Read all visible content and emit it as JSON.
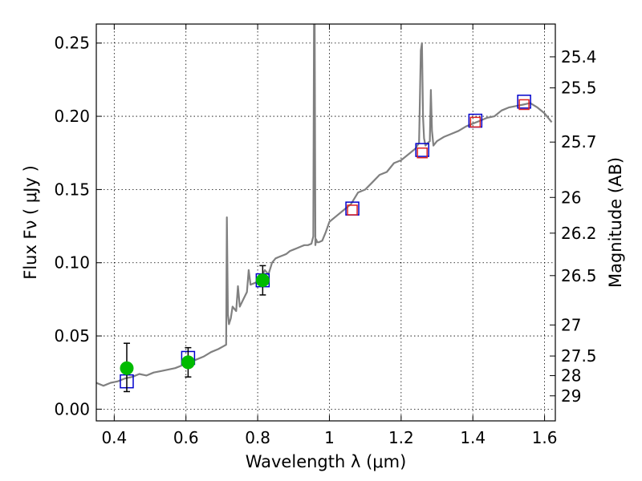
{
  "chart_data": {
    "type": "line",
    "title": "",
    "xlabel": "Wavelength  λ (μm)",
    "ylabel": "Flux  Fν  ( μJy )",
    "y2label": "Magnitude (AB)",
    "xlim": [
      0.35,
      1.63
    ],
    "ylim": [
      -0.008,
      0.263
    ],
    "grid": true,
    "colors": {
      "spectrum": "#808080",
      "observed": "#00bb00",
      "model_box": "#0000cc",
      "hst_box": "#dd2222",
      "errorbar": "#000000"
    },
    "x_ticks": [
      {
        "value": 0.4,
        "label": "0.4"
      },
      {
        "value": 0.6,
        "label": "0.6"
      },
      {
        "value": 0.8,
        "label": "0.8"
      },
      {
        "value": 1.0,
        "label": "1"
      },
      {
        "value": 1.2,
        "label": "1.2"
      },
      {
        "value": 1.4,
        "label": "1.4"
      },
      {
        "value": 1.6,
        "label": "1.6"
      }
    ],
    "y_ticks": [
      {
        "value": 0.0,
        "label": "0.00"
      },
      {
        "value": 0.05,
        "label": "0.05"
      },
      {
        "value": 0.1,
        "label": "0.10"
      },
      {
        "value": 0.15,
        "label": "0.15"
      },
      {
        "value": 0.2,
        "label": "0.20"
      },
      {
        "value": 0.25,
        "label": "0.25"
      }
    ],
    "y2_ticks": [
      {
        "flux": 0.2406,
        "label": "25.4"
      },
      {
        "flux": 0.2194,
        "label": "25.5"
      },
      {
        "flux": 0.1824,
        "label": "25.7"
      },
      {
        "flux": 0.1446,
        "label": "26"
      },
      {
        "flux": 0.1202,
        "label": "26.2"
      },
      {
        "flux": 0.0912,
        "label": "26.5"
      },
      {
        "flux": 0.0575,
        "label": "27"
      },
      {
        "flux": 0.0363,
        "label": "27.5"
      },
      {
        "flux": 0.0229,
        "label": "28"
      },
      {
        "flux": 0.0091,
        "label": "29"
      }
    ],
    "spectrum": {
      "x": [
        0.35,
        0.37,
        0.39,
        0.41,
        0.43,
        0.45,
        0.47,
        0.49,
        0.51,
        0.53,
        0.55,
        0.57,
        0.59,
        0.61,
        0.63,
        0.65,
        0.67,
        0.69,
        0.705,
        0.712,
        0.714,
        0.717,
        0.72,
        0.725,
        0.73,
        0.74,
        0.745,
        0.75,
        0.76,
        0.77,
        0.775,
        0.78,
        0.79,
        0.8,
        0.81,
        0.82,
        0.83,
        0.84,
        0.85,
        0.86,
        0.87,
        0.88,
        0.89,
        0.9,
        0.91,
        0.92,
        0.93,
        0.94,
        0.95,
        0.955,
        0.957,
        0.959,
        0.961,
        0.963,
        0.966,
        0.97,
        0.98,
        0.99,
        1.0,
        1.02,
        1.04,
        1.06,
        1.08,
        1.1,
        1.12,
        1.14,
        1.16,
        1.18,
        1.2,
        1.22,
        1.24,
        1.25,
        1.255,
        1.258,
        1.261,
        1.264,
        1.268,
        1.275,
        1.28,
        1.283,
        1.286,
        1.29,
        1.3,
        1.32,
        1.34,
        1.36,
        1.38,
        1.4,
        1.42,
        1.44,
        1.46,
        1.48,
        1.5,
        1.52,
        1.54,
        1.56,
        1.58,
        1.6,
        1.62
      ],
      "y": [
        0.018,
        0.016,
        0.018,
        0.019,
        0.021,
        0.022,
        0.024,
        0.023,
        0.025,
        0.026,
        0.027,
        0.028,
        0.03,
        0.032,
        0.034,
        0.036,
        0.039,
        0.041,
        0.043,
        0.044,
        0.131,
        0.065,
        0.058,
        0.062,
        0.07,
        0.067,
        0.084,
        0.07,
        0.075,
        0.08,
        0.095,
        0.085,
        0.086,
        0.087,
        0.09,
        0.095,
        0.092,
        0.1,
        0.103,
        0.104,
        0.105,
        0.106,
        0.108,
        0.109,
        0.11,
        0.111,
        0.112,
        0.112,
        0.113,
        0.118,
        0.263,
        0.263,
        0.112,
        0.116,
        0.114,
        0.114,
        0.115,
        0.121,
        0.128,
        0.132,
        0.136,
        0.14,
        0.148,
        0.15,
        0.155,
        0.16,
        0.162,
        0.168,
        0.17,
        0.174,
        0.178,
        0.182,
        0.245,
        0.25,
        0.2,
        0.185,
        0.18,
        0.182,
        0.183,
        0.218,
        0.19,
        0.18,
        0.183,
        0.186,
        0.188,
        0.19,
        0.193,
        0.195,
        0.197,
        0.199,
        0.2,
        0.204,
        0.206,
        0.207,
        0.208,
        0.209,
        0.206,
        0.202,
        0.196
      ]
    },
    "observed_points": [
      {
        "x": 0.435,
        "y": 0.028,
        "yerr_low": 0.016,
        "yerr_high": 0.017
      },
      {
        "x": 0.606,
        "y": 0.032,
        "yerr_low": 0.01,
        "yerr_high": 0.01
      },
      {
        "x": 0.814,
        "y": 0.088,
        "yerr_low": 0.01,
        "yerr_high": 0.01
      }
    ],
    "model_boxes": [
      {
        "x": 0.435,
        "y": 0.019
      },
      {
        "x": 0.606,
        "y": 0.035
      },
      {
        "x": 0.814,
        "y": 0.088
      },
      {
        "x": 1.064,
        "y": 0.137
      },
      {
        "x": 1.259,
        "y": 0.177
      },
      {
        "x": 1.407,
        "y": 0.197
      },
      {
        "x": 1.543,
        "y": 0.21
      }
    ],
    "hst_boxes": [
      {
        "x": 1.064,
        "y": 0.136
      },
      {
        "x": 1.259,
        "y": 0.175
      },
      {
        "x": 1.407,
        "y": 0.196
      },
      {
        "x": 1.543,
        "y": 0.208
      }
    ]
  }
}
